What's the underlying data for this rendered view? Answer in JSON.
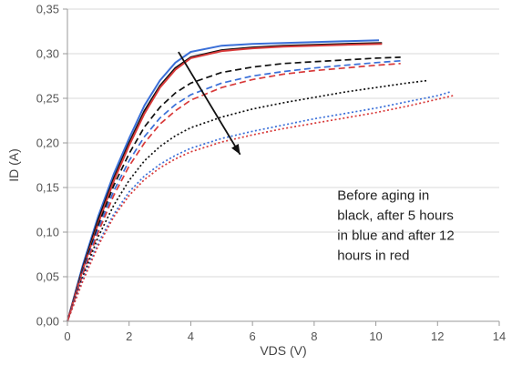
{
  "chart_data": {
    "type": "line",
    "title": "",
    "xlabel": "VDS (V)",
    "ylabel": "ID (A)",
    "xlim": [
      0,
      14
    ],
    "ylim": [
      0,
      0.35
    ],
    "x_ticks": [
      0,
      2,
      4,
      6,
      8,
      10,
      12,
      14
    ],
    "y_ticks": [
      0,
      0.05,
      0.1,
      0.15,
      0.2,
      0.25,
      0.3,
      0.35
    ],
    "x_tick_labels": [
      "0",
      "2",
      "4",
      "6",
      "8",
      "10",
      "12",
      "14"
    ],
    "y_tick_labels": [
      "0,00",
      "0,05",
      "0,10",
      "0,15",
      "0,20",
      "0,25",
      "0,30",
      "0,35"
    ],
    "grid": "horizontal",
    "colors": {
      "black": "#111111",
      "blue": "#3a6fd8",
      "red": "#d83a3a"
    },
    "series": [
      {
        "color": "blue",
        "style": "solid",
        "x": [
          0,
          0.5,
          1,
          1.5,
          2,
          2.5,
          3,
          3.5,
          4,
          5,
          6,
          7,
          8,
          9,
          10.1
        ],
        "y": [
          0,
          0.063,
          0.118,
          0.165,
          0.205,
          0.242,
          0.27,
          0.29,
          0.302,
          0.309,
          0.311,
          0.312,
          0.313,
          0.314,
          0.315
        ]
      },
      {
        "color": "black",
        "style": "solid",
        "x": [
          0,
          0.5,
          1,
          1.5,
          2,
          2.5,
          3,
          3.5,
          4,
          5,
          6,
          7,
          8,
          9,
          10.2
        ],
        "y": [
          0,
          0.06,
          0.114,
          0.16,
          0.2,
          0.236,
          0.264,
          0.284,
          0.296,
          0.304,
          0.307,
          0.309,
          0.31,
          0.311,
          0.312
        ]
      },
      {
        "color": "red",
        "style": "solid",
        "x": [
          0,
          0.5,
          1,
          1.5,
          2,
          2.5,
          3,
          3.5,
          4,
          5,
          6,
          7,
          8,
          9,
          10.2
        ],
        "y": [
          0,
          0.058,
          0.11,
          0.157,
          0.197,
          0.233,
          0.262,
          0.282,
          0.295,
          0.303,
          0.306,
          0.308,
          0.309,
          0.31,
          0.311
        ]
      },
      {
        "color": "black",
        "style": "dashed",
        "x": [
          0,
          0.5,
          1,
          1.5,
          2,
          2.5,
          3,
          3.5,
          4,
          5,
          6,
          7,
          8,
          9,
          10,
          10.8
        ],
        "y": [
          0,
          0.057,
          0.108,
          0.152,
          0.188,
          0.218,
          0.24,
          0.256,
          0.267,
          0.279,
          0.285,
          0.289,
          0.291,
          0.293,
          0.295,
          0.296
        ]
      },
      {
        "color": "blue",
        "style": "dashed",
        "x": [
          0,
          0.5,
          1,
          1.5,
          2,
          2.5,
          3,
          3.5,
          4,
          5,
          6,
          7,
          8,
          9,
          10,
          10.8
        ],
        "y": [
          0,
          0.055,
          0.104,
          0.146,
          0.18,
          0.207,
          0.228,
          0.243,
          0.254,
          0.267,
          0.275,
          0.28,
          0.284,
          0.287,
          0.29,
          0.292
        ]
      },
      {
        "color": "red",
        "style": "dashed",
        "x": [
          0,
          0.5,
          1,
          1.5,
          2,
          2.5,
          3,
          3.5,
          4,
          5,
          6,
          7,
          8,
          9,
          10,
          10.8
        ],
        "y": [
          0,
          0.053,
          0.1,
          0.141,
          0.174,
          0.2,
          0.221,
          0.236,
          0.248,
          0.262,
          0.271,
          0.277,
          0.281,
          0.284,
          0.287,
          0.289
        ]
      },
      {
        "color": "black",
        "style": "dotted",
        "x": [
          0,
          0.5,
          1,
          1.5,
          2,
          2.5,
          3,
          3.5,
          4,
          5,
          6,
          7,
          8,
          9,
          10,
          11,
          11.7
        ],
        "y": [
          0,
          0.05,
          0.095,
          0.13,
          0.158,
          0.18,
          0.196,
          0.208,
          0.217,
          0.229,
          0.238,
          0.245,
          0.251,
          0.257,
          0.262,
          0.267,
          0.27
        ]
      },
      {
        "color": "blue",
        "style": "dotted",
        "x": [
          0,
          0.5,
          1,
          1.5,
          2,
          2.5,
          3,
          3.5,
          4,
          5,
          6,
          7,
          8,
          9,
          10,
          11,
          12,
          12.4
        ],
        "y": [
          0,
          0.047,
          0.088,
          0.12,
          0.145,
          0.163,
          0.176,
          0.186,
          0.194,
          0.205,
          0.213,
          0.22,
          0.227,
          0.233,
          0.239,
          0.246,
          0.253,
          0.257
        ]
      },
      {
        "color": "red",
        "style": "dotted",
        "x": [
          0,
          0.5,
          1,
          1.5,
          2,
          2.5,
          3,
          3.5,
          4,
          5,
          6,
          7,
          8,
          9,
          10,
          11,
          12,
          12.5
        ],
        "y": [
          0,
          0.045,
          0.085,
          0.117,
          0.141,
          0.159,
          0.172,
          0.182,
          0.19,
          0.201,
          0.209,
          0.216,
          0.222,
          0.228,
          0.234,
          0.241,
          0.249,
          0.253
        ]
      }
    ],
    "arrow": {
      "from": [
        3.6,
        0.302
      ],
      "to": [
        5.6,
        0.187
      ]
    },
    "annotation": {
      "lines": [
        "Before aging in",
        "black, after 5 hours",
        "in blue and after 12",
        "hours in red"
      ],
      "x": 8.75,
      "y": 0.136
    }
  }
}
